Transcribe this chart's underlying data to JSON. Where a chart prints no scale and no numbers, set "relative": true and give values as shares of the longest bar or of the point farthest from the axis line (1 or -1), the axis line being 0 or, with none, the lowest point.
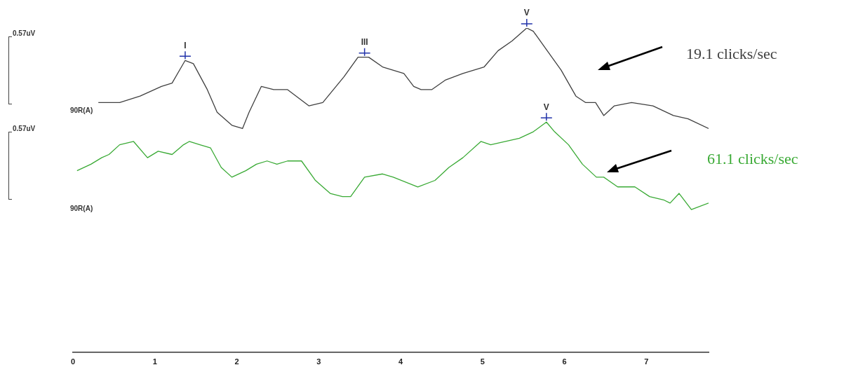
{
  "chart_data": {
    "type": "line",
    "relative": true,
    "legend": false,
    "grid": false,
    "marker": "none",
    "line_style": "solid",
    "xlim": [
      0,
      7.76
    ],
    "xticks": [
      0,
      1,
      2,
      3,
      4,
      5,
      6,
      7
    ],
    "series": [
      {
        "name": "19.1 clicks/sec",
        "color": "#404040",
        "x": [
          0.31,
          0.57,
          0.82,
          1.08,
          1.21,
          1.37,
          1.47,
          1.64,
          1.76,
          1.94,
          2.07,
          2.15,
          2.3,
          2.45,
          2.62,
          2.88,
          3.05,
          3.31,
          3.48,
          3.61,
          3.78,
          4.04,
          4.16,
          4.25,
          4.38,
          4.55,
          4.76,
          5.02,
          5.19,
          5.36,
          5.54,
          5.62,
          5.79,
          5.96,
          6.14,
          6.26,
          6.38,
          6.48,
          6.61,
          6.82,
          7.08,
          7.33,
          7.51,
          7.76
        ],
        "values": [
          0.77,
          0.77,
          0.79,
          0.82,
          0.83,
          0.9,
          0.89,
          0.81,
          0.74,
          0.7,
          0.69,
          0.74,
          0.82,
          0.81,
          0.81,
          0.76,
          0.77,
          0.85,
          0.91,
          0.91,
          0.88,
          0.86,
          0.82,
          0.81,
          0.81,
          0.84,
          0.86,
          0.88,
          0.93,
          0.96,
          1.0,
          0.99,
          0.93,
          0.87,
          0.79,
          0.77,
          0.77,
          0.73,
          0.76,
          0.77,
          0.76,
          0.73,
          0.72,
          0.69
        ]
      },
      {
        "name": "61.1 clicks/sec",
        "color": "#3aaa35",
        "x": [
          0.05,
          0.22,
          0.35,
          0.44,
          0.57,
          0.74,
          0.91,
          1.04,
          1.21,
          1.35,
          1.42,
          1.55,
          1.68,
          1.81,
          1.94,
          2.11,
          2.24,
          2.37,
          2.49,
          2.62,
          2.79,
          2.96,
          3.14,
          3.29,
          3.39,
          3.56,
          3.78,
          3.91,
          4.21,
          4.42,
          4.59,
          4.76,
          4.98,
          5.1,
          5.28,
          5.45,
          5.62,
          5.78,
          5.88,
          6.05,
          6.22,
          6.39,
          6.48,
          6.65,
          6.86,
          7.04,
          7.21,
          7.29,
          7.4,
          7.55,
          7.76
        ],
        "values": [
          0.56,
          0.58,
          0.6,
          0.61,
          0.64,
          0.65,
          0.6,
          0.62,
          0.61,
          0.64,
          0.65,
          0.64,
          0.63,
          0.57,
          0.54,
          0.56,
          0.58,
          0.59,
          0.58,
          0.59,
          0.59,
          0.53,
          0.49,
          0.48,
          0.48,
          0.54,
          0.55,
          0.54,
          0.51,
          0.53,
          0.57,
          0.6,
          0.65,
          0.64,
          0.65,
          0.66,
          0.68,
          0.71,
          0.68,
          0.64,
          0.58,
          0.54,
          0.54,
          0.51,
          0.51,
          0.48,
          0.47,
          0.46,
          0.49,
          0.44,
          0.46
        ]
      }
    ],
    "annotations": [
      {
        "text": "I",
        "x": 1.37,
        "y": 0.9
      },
      {
        "text": "III",
        "x": 3.56,
        "y": 0.91
      },
      {
        "text": "V",
        "x": 5.54,
        "y": 1.0
      },
      {
        "text": "V",
        "x": 5.78,
        "y": 0.71
      },
      "0.57uV",
      "90R(A)",
      "0.57uV",
      "90R(A)"
    ]
  }
}
